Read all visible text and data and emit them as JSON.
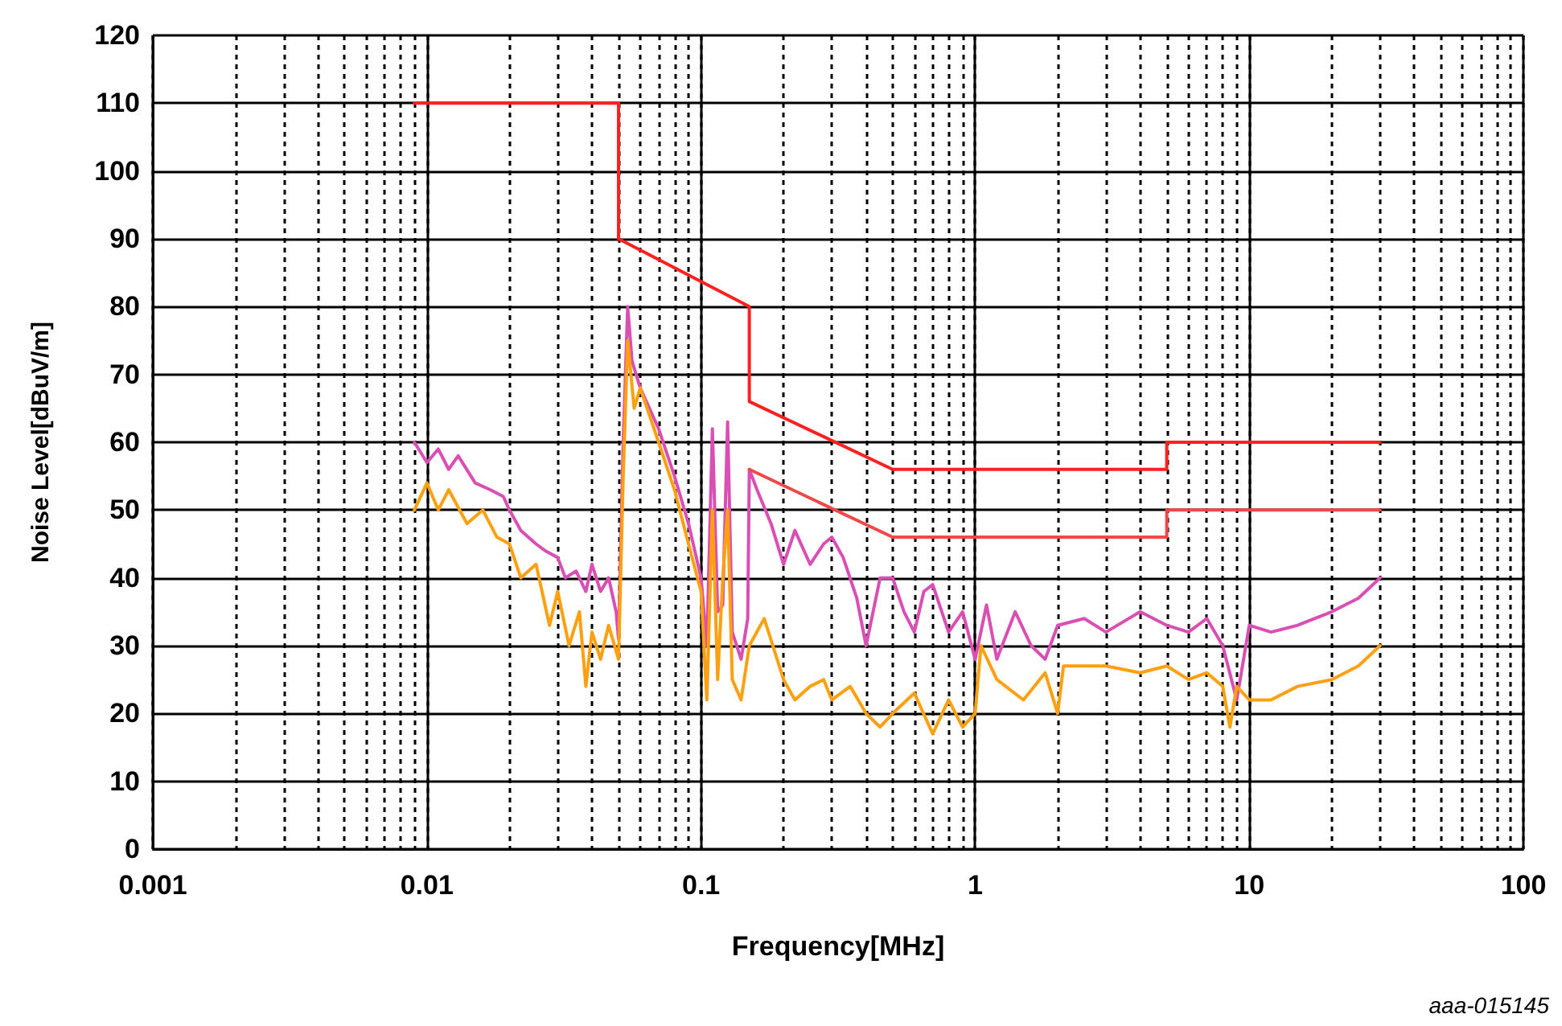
{
  "chart_data": {
    "type": "line",
    "xlabel": "Frequency[MHz]",
    "ylabel": "Noise Level[dBuV/m]",
    "annotations": [
      "aaa-015145"
    ],
    "log": "x",
    "grid": true,
    "marker": "none",
    "line_style": "solid",
    "xlim": [
      0.001,
      100
    ],
    "ylim": [
      0,
      120
    ],
    "xticks": [
      0.001,
      {
        "value": 0.002,
        "label": null
      },
      {
        "value": 0.003,
        "label": null
      },
      {
        "value": 0.004,
        "label": null
      },
      {
        "value": 0.005,
        "label": null
      },
      {
        "value": 0.006,
        "label": null
      },
      {
        "value": 0.007,
        "label": null
      },
      {
        "value": 0.008,
        "label": null
      },
      {
        "value": 0.009,
        "label": null
      },
      0.01,
      {
        "value": 0.02,
        "label": null
      },
      {
        "value": 0.03,
        "label": null
      },
      {
        "value": 0.04,
        "label": null
      },
      {
        "value": 0.05,
        "label": null
      },
      {
        "value": 0.06,
        "label": null
      },
      {
        "value": 0.07,
        "label": null
      },
      {
        "value": 0.08,
        "label": null
      },
      {
        "value": 0.09,
        "label": null
      },
      0.1,
      {
        "value": 0.2,
        "label": null
      },
      {
        "value": 0.3,
        "label": null
      },
      {
        "value": 0.4,
        "label": null
      },
      {
        "value": 0.5,
        "label": null
      },
      {
        "value": 0.6,
        "label": null
      },
      {
        "value": 0.7,
        "label": null
      },
      {
        "value": 0.8,
        "label": null
      },
      {
        "value": 0.9,
        "label": null
      },
      1,
      {
        "value": 2,
        "label": null
      },
      {
        "value": 3,
        "label": null
      },
      {
        "value": 4,
        "label": null
      },
      {
        "value": 5,
        "label": null
      },
      {
        "value": 6,
        "label": null
      },
      {
        "value": 7,
        "label": null
      },
      {
        "value": 8,
        "label": null
      },
      {
        "value": 9,
        "label": null
      },
      10,
      {
        "value": 20,
        "label": null
      },
      {
        "value": 30,
        "label": null
      },
      {
        "value": 40,
        "label": null
      },
      {
        "value": 50,
        "label": null
      },
      {
        "value": 60,
        "label": null
      },
      {
        "value": 70,
        "label": null
      },
      {
        "value": 80,
        "label": null
      },
      {
        "value": 90,
        "label": null
      },
      100
    ],
    "yticks": [
      0,
      10,
      20,
      30,
      40,
      50,
      60,
      70,
      80,
      90,
      100,
      110,
      120
    ],
    "series": [
      {
        "color": "#d94fb4",
        "x": [
          0.009,
          0.01,
          0.011,
          0.012,
          0.013,
          0.015,
          0.017,
          0.019,
          0.02,
          0.022,
          0.025,
          0.027,
          0.03,
          0.032,
          0.035,
          0.038,
          0.04,
          0.043,
          0.046,
          0.049,
          0.05,
          0.052,
          0.054,
          0.056,
          0.06,
          0.07,
          0.08,
          0.09,
          0.1,
          0.105,
          0.11,
          0.115,
          0.12,
          0.125,
          0.13,
          0.14,
          0.148,
          0.15,
          0.16,
          0.18,
          0.2,
          0.22,
          0.25,
          0.28,
          0.3,
          0.33,
          0.37,
          0.4,
          0.45,
          0.5,
          0.55,
          0.6,
          0.65,
          0.7,
          0.8,
          0.9,
          1,
          1.1,
          1.2,
          1.4,
          1.6,
          1.8,
          2,
          2.5,
          3,
          4,
          5,
          6,
          7,
          8,
          9,
          10,
          12,
          15,
          20,
          25,
          30
        ],
        "values": [
          60,
          57,
          59,
          56,
          58,
          54,
          53,
          52,
          50,
          47,
          45,
          44,
          43,
          40,
          41,
          38,
          42,
          38,
          40,
          35,
          31,
          60,
          80,
          72,
          68,
          62,
          55,
          48,
          40,
          30,
          62,
          35,
          36,
          63,
          32,
          28,
          34,
          56,
          53,
          48,
          42,
          47,
          42,
          45,
          46,
          43,
          37,
          30,
          40,
          40,
          35,
          32,
          38,
          39,
          32,
          35,
          28,
          36,
          28,
          35,
          30,
          28,
          33,
          34,
          32,
          35,
          33,
          32,
          34,
          30,
          22,
          33,
          32,
          33,
          35,
          37,
          40
        ]
      },
      {
        "color": "#ffa010",
        "x": [
          0.009,
          0.01,
          0.011,
          0.012,
          0.014,
          0.016,
          0.018,
          0.02,
          0.022,
          0.025,
          0.028,
          0.03,
          0.033,
          0.036,
          0.038,
          0.04,
          0.043,
          0.046,
          0.05,
          0.052,
          0.054,
          0.057,
          0.06,
          0.07,
          0.08,
          0.09,
          0.1,
          0.105,
          0.11,
          0.115,
          0.12,
          0.125,
          0.13,
          0.14,
          0.15,
          0.17,
          0.2,
          0.22,
          0.25,
          0.28,
          0.3,
          0.35,
          0.4,
          0.45,
          0.5,
          0.6,
          0.7,
          0.8,
          0.9,
          1,
          1.05,
          1.2,
          1.5,
          1.8,
          2,
          2.1,
          3,
          4,
          5,
          6,
          7,
          8,
          8.5,
          9,
          10,
          12,
          15,
          20,
          25,
          30
        ],
        "values": [
          50,
          54,
          50,
          53,
          48,
          50,
          46,
          45,
          40,
          42,
          33,
          38,
          30,
          35,
          24,
          32,
          28,
          33,
          28,
          55,
          75,
          65,
          68,
          60,
          53,
          45,
          38,
          22,
          50,
          25,
          40,
          50,
          25,
          22,
          30,
          34,
          25,
          22,
          24,
          25,
          22,
          24,
          20,
          18,
          20,
          23,
          17,
          22,
          18,
          20,
          30,
          25,
          22,
          26,
          20,
          27,
          27,
          26,
          27,
          25,
          26,
          24,
          18,
          24,
          22,
          22,
          24,
          25,
          27,
          30
        ]
      },
      {
        "color": "#ff2020",
        "x": [
          0.009,
          0.05,
          0.05,
          0.15,
          0.15,
          0.5,
          5,
          5,
          30
        ],
        "values": [
          110,
          110,
          90,
          80,
          66,
          56,
          56,
          60,
          60
        ]
      },
      {
        "color": "#f04848",
        "x": [
          0.15,
          0.5,
          5,
          5,
          30
        ],
        "values": [
          56,
          46,
          46,
          50,
          50
        ]
      }
    ]
  }
}
